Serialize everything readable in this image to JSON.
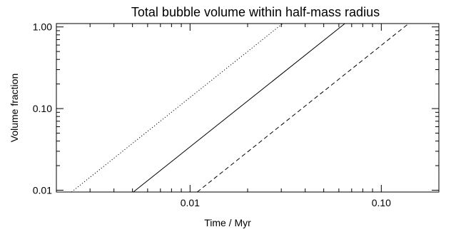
{
  "chart_data": {
    "type": "line",
    "title": "Total bubble volume within half-mass radius",
    "xlabel": "Time / Myr",
    "ylabel": "Volume fraction",
    "xscale": "log",
    "yscale": "log",
    "xlim": [
      0.002,
      0.2
    ],
    "ylim": [
      0.0095,
      1.1
    ],
    "xticks": [
      {
        "value": 0.01,
        "label": "0.01"
      },
      {
        "value": 0.1,
        "label": "0.10"
      }
    ],
    "yticks": [
      {
        "value": 0.01,
        "label": "0.01"
      },
      {
        "value": 0.1,
        "label": "0.10"
      },
      {
        "value": 1.0,
        "label": "1.00"
      }
    ],
    "grid": false,
    "series": [
      {
        "style": "dotted",
        "x": [
          0.0024,
          0.0305
        ],
        "y": [
          0.0095,
          1.1
        ]
      },
      {
        "style": "solid",
        "x": [
          0.00505,
          0.0645
        ],
        "y": [
          0.0095,
          1.1
        ]
      },
      {
        "style": "dashed",
        "x": [
          0.0109,
          0.139
        ],
        "y": [
          0.0095,
          1.1
        ]
      }
    ]
  }
}
